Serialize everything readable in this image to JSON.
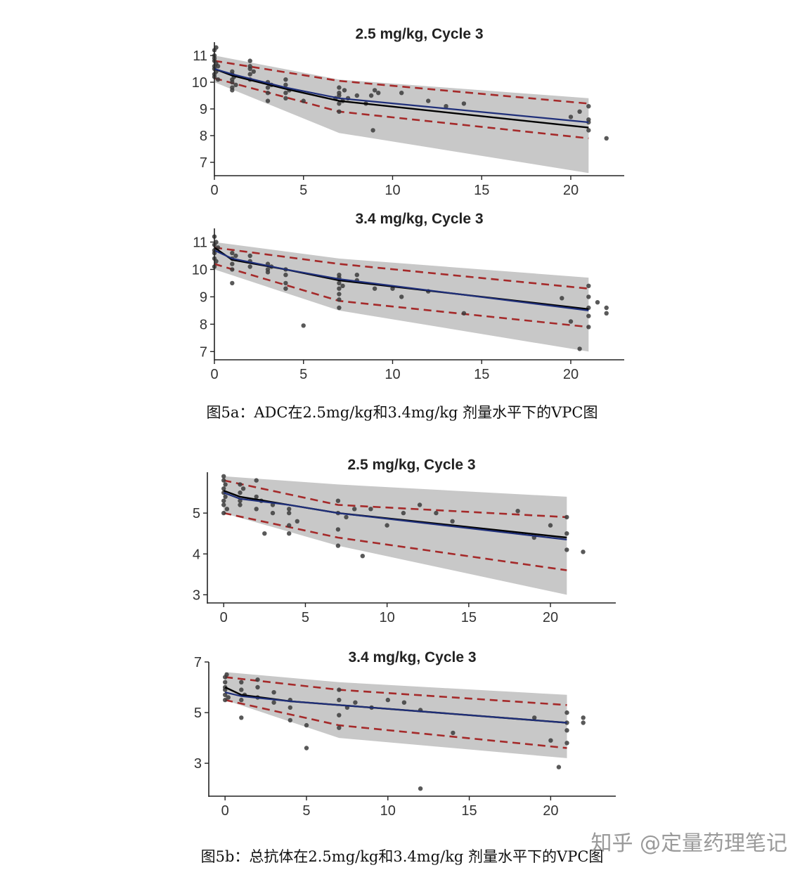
{
  "figure_a": {
    "caption": "图5a：ADC在2.5mg/kg和3.4mg/kg 剂量水平下的VPC图",
    "panels": [
      {
        "title": "2.5 mg/kg, Cycle 3"
      },
      {
        "title": "3.4 mg/kg, Cycle 3"
      }
    ]
  },
  "figure_b": {
    "caption": "图5b：总抗体在2.5mg/kg和3.4mg/kg 剂量水平下的VPC图",
    "panels": [
      {
        "title": "2.5 mg/kg, Cycle 3"
      },
      {
        "title": "3.4 mg/kg, Cycle 3"
      }
    ]
  },
  "watermark": "知乎 @定量药理笔记",
  "colors": {
    "band": "#c8c8c8",
    "pi_lines": "#a52a2a",
    "predicted_median": "#1f2f7a",
    "observed_median": "#000000",
    "points": "#3c3c3c"
  },
  "chart_data": [
    {
      "type": "scatter",
      "title": "2.5 mg/kg, Cycle 3",
      "xlim": [
        0,
        23
      ],
      "ylim": [
        6.5,
        11.5
      ],
      "xticks": [
        0,
        5,
        10,
        15,
        20
      ],
      "yticks": [
        7,
        8,
        9,
        10,
        11
      ],
      "band": {
        "x": [
          0,
          7,
          21
        ],
        "upper": [
          11.0,
          10.1,
          9.4
        ],
        "lower": [
          10.0,
          8.1,
          6.6
        ]
      },
      "series": [
        {
          "role": "upper_percentile",
          "x": [
            0,
            7,
            21
          ],
          "values": [
            10.8,
            10.05,
            9.2
          ]
        },
        {
          "role": "lower_percentile",
          "x": [
            0,
            7,
            21
          ],
          "values": [
            10.15,
            8.9,
            7.9
          ]
        },
        {
          "role": "predicted_median",
          "x": [
            0,
            1,
            4,
            7,
            21
          ],
          "values": [
            10.5,
            10.3,
            9.8,
            9.4,
            8.5
          ]
        },
        {
          "role": "observed_median",
          "x": [
            0,
            1,
            4,
            7,
            21
          ],
          "values": [
            10.5,
            10.25,
            9.75,
            9.3,
            8.3
          ]
        }
      ],
      "observations": [
        [
          0,
          10.5
        ],
        [
          0,
          10.8
        ],
        [
          0,
          11.2
        ],
        [
          0,
          10.3
        ],
        [
          0,
          10.9
        ],
        [
          0,
          10.6
        ],
        [
          0,
          11.0
        ],
        [
          0,
          10.2
        ],
        [
          0.1,
          10.7
        ],
        [
          0.1,
          11.3
        ],
        [
          0.1,
          10.4
        ],
        [
          0.2,
          10.6
        ],
        [
          0.2,
          10.1
        ],
        [
          1,
          10.4
        ],
        [
          1,
          10.1
        ],
        [
          1,
          9.8
        ],
        [
          1,
          10.3
        ],
        [
          1,
          10.0
        ],
        [
          1,
          9.7
        ],
        [
          1.1,
          10.2
        ],
        [
          1.2,
          9.9
        ],
        [
          2,
          10.6
        ],
        [
          2,
          10.3
        ],
        [
          2,
          10.5
        ],
        [
          2,
          10.8
        ],
        [
          2,
          10.1
        ],
        [
          2.2,
          10.4
        ],
        [
          3,
          10.0
        ],
        [
          3,
          9.6
        ],
        [
          3,
          9.3
        ],
        [
          3,
          9.8
        ],
        [
          3.2,
          9.9
        ],
        [
          4,
          9.9
        ],
        [
          4,
          9.6
        ],
        [
          4,
          9.4
        ],
        [
          4,
          10.1
        ],
        [
          4.2,
          9.7
        ],
        [
          5,
          9.3
        ],
        [
          6.8,
          9.4
        ],
        [
          7,
          9.6
        ],
        [
          7,
          9.2
        ],
        [
          7,
          8.9
        ],
        [
          7,
          9.8
        ],
        [
          7,
          9.5
        ],
        [
          7.2,
          9.3
        ],
        [
          7.3,
          9.7
        ],
        [
          7.5,
          9.4
        ],
        [
          8,
          9.5
        ],
        [
          8.5,
          9.2
        ],
        [
          8.8,
          9.5
        ],
        [
          9,
          9.7
        ],
        [
          8.9,
          8.2
        ],
        [
          9.2,
          9.6
        ],
        [
          10.5,
          9.6
        ],
        [
          12,
          9.3
        ],
        [
          13,
          9.1
        ],
        [
          14,
          9.2
        ],
        [
          20,
          8.7
        ],
        [
          20.5,
          8.9
        ],
        [
          21,
          8.5
        ],
        [
          21,
          8.2
        ],
        [
          21,
          9.1
        ],
        [
          21,
          8.6
        ],
        [
          22,
          7.9
        ]
      ]
    },
    {
      "type": "scatter",
      "title": "3.4 mg/kg, Cycle 3",
      "xlim": [
        0,
        23
      ],
      "ylim": [
        6.7,
        11.5
      ],
      "xticks": [
        0,
        5,
        10,
        15,
        20
      ],
      "yticks": [
        7,
        8,
        9,
        10,
        11
      ],
      "band": {
        "x": [
          0,
          7,
          21
        ],
        "upper": [
          11.0,
          10.4,
          9.7
        ],
        "lower": [
          10.0,
          8.5,
          7.0
        ]
      },
      "series": [
        {
          "role": "upper_percentile",
          "x": [
            0,
            7,
            21
          ],
          "values": [
            10.8,
            10.2,
            9.3
          ]
        },
        {
          "role": "lower_percentile",
          "x": [
            0,
            7,
            21
          ],
          "values": [
            10.2,
            8.85,
            7.9
          ]
        },
        {
          "role": "predicted_median",
          "x": [
            0,
            1,
            4,
            7,
            21
          ],
          "values": [
            10.7,
            10.4,
            10.0,
            9.65,
            8.5
          ]
        },
        {
          "role": "observed_median",
          "x": [
            0,
            1,
            4,
            7,
            21
          ],
          "values": [
            10.8,
            10.35,
            10.0,
            9.6,
            8.55
          ]
        }
      ],
      "observations": [
        [
          0,
          10.6
        ],
        [
          0,
          10.9
        ],
        [
          0,
          11.2
        ],
        [
          0,
          10.4
        ],
        [
          0,
          10.1
        ],
        [
          0,
          10.7
        ],
        [
          0.1,
          11.0
        ],
        [
          0.1,
          10.3
        ],
        [
          0.2,
          10.8
        ],
        [
          1,
          10.4
        ],
        [
          1,
          10.0
        ],
        [
          1,
          9.5
        ],
        [
          1,
          10.6
        ],
        [
          1,
          10.2
        ],
        [
          1.2,
          10.5
        ],
        [
          2,
          10.3
        ],
        [
          2,
          10.1
        ],
        [
          2,
          10.5
        ],
        [
          3,
          10.0
        ],
        [
          3,
          10.2
        ],
        [
          3,
          9.9
        ],
        [
          3.2,
          10.1
        ],
        [
          4,
          9.8
        ],
        [
          4,
          9.5
        ],
        [
          4,
          10.0
        ],
        [
          4,
          9.3
        ],
        [
          5,
          7.95
        ],
        [
          7,
          9.7
        ],
        [
          7,
          9.3
        ],
        [
          7,
          8.9
        ],
        [
          7,
          9.5
        ],
        [
          7,
          8.6
        ],
        [
          7,
          9.1
        ],
        [
          7,
          9.8
        ],
        [
          7.2,
          9.4
        ],
        [
          8,
          9.6
        ],
        [
          8,
          9.8
        ],
        [
          9,
          9.3
        ],
        [
          10,
          9.3
        ],
        [
          10.5,
          9.0
        ],
        [
          12,
          9.2
        ],
        [
          14,
          8.4
        ],
        [
          19.5,
          8.95
        ],
        [
          20,
          8.1
        ],
        [
          20.5,
          7.1
        ],
        [
          21,
          8.6
        ],
        [
          21,
          9.0
        ],
        [
          21,
          8.3
        ],
        [
          21,
          9.4
        ],
        [
          21,
          7.9
        ],
        [
          21.5,
          8.8
        ],
        [
          22,
          8.6
        ],
        [
          22,
          8.4
        ]
      ]
    },
    {
      "type": "scatter",
      "title": "2.5 mg/kg, Cycle 3",
      "xlim": [
        -1,
        24
      ],
      "ylim": [
        2.8,
        6.0
      ],
      "xticks": [
        0,
        5,
        10,
        15,
        20
      ],
      "yticks": [
        3,
        4,
        5
      ],
      "band": {
        "x": [
          0,
          7,
          21
        ],
        "upper": [
          5.9,
          5.7,
          5.4
        ],
        "lower": [
          5.0,
          4.2,
          3.0
        ]
      },
      "series": [
        {
          "role": "upper_percentile",
          "x": [
            0,
            7,
            21
          ],
          "values": [
            5.8,
            5.2,
            4.9
          ]
        },
        {
          "role": "lower_percentile",
          "x": [
            0,
            7,
            21
          ],
          "values": [
            5.0,
            4.4,
            3.6
          ]
        },
        {
          "role": "predicted_median",
          "x": [
            0,
            1,
            4,
            7,
            21
          ],
          "values": [
            5.5,
            5.35,
            5.2,
            5.0,
            4.35
          ]
        },
        {
          "role": "observed_median",
          "x": [
            0,
            1,
            4,
            7,
            21
          ],
          "values": [
            5.55,
            5.4,
            5.2,
            5.0,
            4.4
          ]
        }
      ],
      "observations": [
        [
          0,
          5.5
        ],
        [
          0,
          5.8
        ],
        [
          0,
          5.2
        ],
        [
          0,
          5.9
        ],
        [
          0,
          5.0
        ],
        [
          0,
          5.6
        ],
        [
          0,
          5.3
        ],
        [
          0.1,
          5.7
        ],
        [
          0.1,
          5.4
        ],
        [
          0.2,
          5.1
        ],
        [
          1,
          5.5
        ],
        [
          1,
          5.2
        ],
        [
          1,
          5.7
        ],
        [
          1,
          5.3
        ],
        [
          1.2,
          5.6
        ],
        [
          2,
          5.4
        ],
        [
          2,
          5.1
        ],
        [
          2,
          5.8
        ],
        [
          2.3,
          5.3
        ],
        [
          2.5,
          4.5
        ],
        [
          3,
          5.0
        ],
        [
          3,
          5.2
        ],
        [
          4,
          5.1
        ],
        [
          4,
          4.7
        ],
        [
          4,
          4.5
        ],
        [
          4,
          5.0
        ],
        [
          4.5,
          4.8
        ],
        [
          7,
          5.0
        ],
        [
          7,
          4.6
        ],
        [
          7,
          5.3
        ],
        [
          7,
          4.2
        ],
        [
          7.5,
          4.9
        ],
        [
          8,
          5.1
        ],
        [
          8.5,
          3.95
        ],
        [
          9,
          5.1
        ],
        [
          10,
          4.7
        ],
        [
          11,
          5.0
        ],
        [
          12,
          5.2
        ],
        [
          13,
          5.0
        ],
        [
          14,
          4.8
        ],
        [
          18,
          5.05
        ],
        [
          19,
          4.4
        ],
        [
          20,
          4.7
        ],
        [
          21,
          4.9
        ],
        [
          21,
          4.1
        ],
        [
          21,
          4.5
        ],
        [
          22,
          4.05
        ]
      ]
    },
    {
      "type": "scatter",
      "title": "3.4 mg/kg, Cycle 3",
      "xlim": [
        -1,
        24
      ],
      "ylim": [
        1.7,
        7.0
      ],
      "xticks": [
        0,
        5,
        10,
        15,
        20
      ],
      "yticks": [
        3,
        5,
        7
      ],
      "band": {
        "x": [
          0,
          7,
          21
        ],
        "upper": [
          6.6,
          6.2,
          5.7
        ],
        "lower": [
          5.5,
          4.0,
          3.2
        ]
      },
      "series": [
        {
          "role": "upper_percentile",
          "x": [
            0,
            7,
            21
          ],
          "values": [
            6.4,
            5.9,
            5.3
          ]
        },
        {
          "role": "lower_percentile",
          "x": [
            0,
            7,
            21
          ],
          "values": [
            5.5,
            4.5,
            3.6
          ]
        },
        {
          "role": "predicted_median",
          "x": [
            0,
            1,
            4,
            7,
            21
          ],
          "values": [
            5.8,
            5.65,
            5.45,
            5.3,
            4.6
          ]
        },
        {
          "role": "observed_median",
          "x": [
            0,
            1,
            4,
            7,
            21
          ],
          "values": [
            6.0,
            5.7,
            5.45,
            5.3,
            4.6
          ]
        }
      ],
      "observations": [
        [
          0,
          6.0
        ],
        [
          0,
          5.7
        ],
        [
          0,
          6.4
        ],
        [
          0,
          5.5
        ],
        [
          0,
          6.2
        ],
        [
          0,
          5.9
        ],
        [
          0.1,
          6.5
        ],
        [
          0.2,
          5.6
        ],
        [
          1,
          5.9
        ],
        [
          1,
          5.5
        ],
        [
          1,
          6.2
        ],
        [
          1,
          4.8
        ],
        [
          1.2,
          5.7
        ],
        [
          2,
          6.0
        ],
        [
          2,
          5.6
        ],
        [
          2,
          6.3
        ],
        [
          3,
          5.4
        ],
        [
          3,
          5.8
        ],
        [
          4,
          5.2
        ],
        [
          4,
          4.7
        ],
        [
          4,
          5.5
        ],
        [
          5,
          4.5
        ],
        [
          5,
          3.6
        ],
        [
          7,
          5.5
        ],
        [
          7,
          4.9
        ],
        [
          7,
          5.9
        ],
        [
          7,
          4.4
        ],
        [
          7.5,
          5.2
        ],
        [
          8,
          5.4
        ],
        [
          9,
          5.2
        ],
        [
          10,
          5.5
        ],
        [
          11,
          5.4
        ],
        [
          12,
          5.1
        ],
        [
          12,
          2.0
        ],
        [
          14,
          4.2
        ],
        [
          19,
          4.8
        ],
        [
          20,
          3.9
        ],
        [
          20.5,
          2.85
        ],
        [
          21,
          4.6
        ],
        [
          21,
          4.3
        ],
        [
          21,
          5.0
        ],
        [
          21,
          3.8
        ],
        [
          22,
          4.8
        ],
        [
          22,
          4.6
        ]
      ]
    }
  ]
}
